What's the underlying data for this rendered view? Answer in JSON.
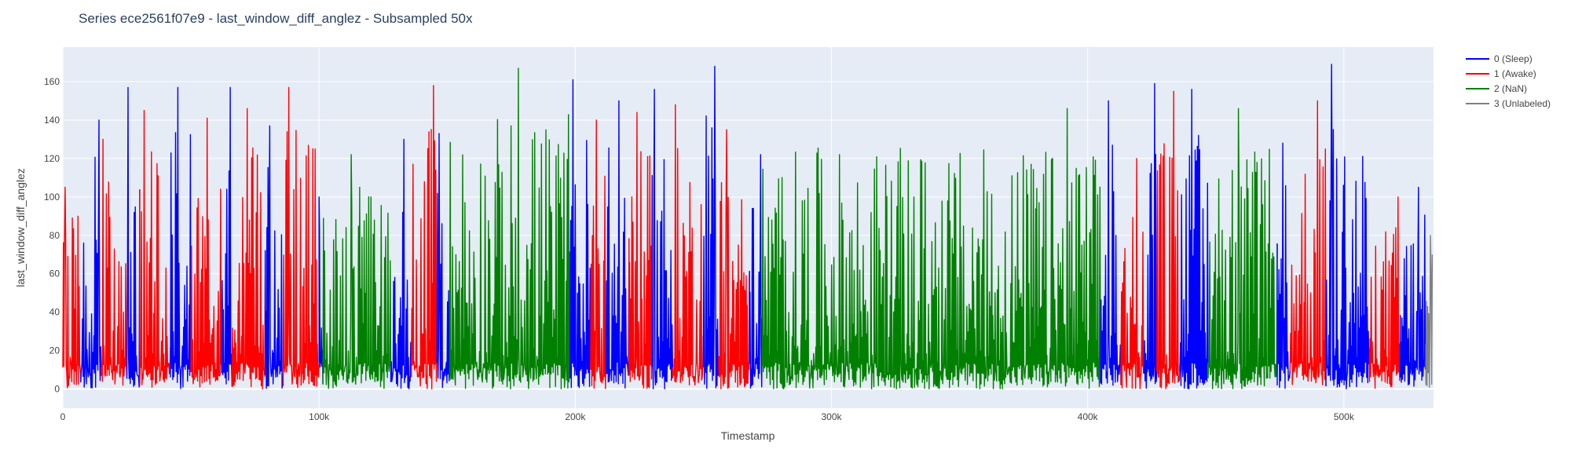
{
  "chart_data": {
    "type": "line",
    "title": "Series ece2561f07e9 - last_window_diff_anglez - Subsampled 50x",
    "xlabel": "Timestamp",
    "ylabel": "last_window_diff_anglez",
    "xlim": [
      0,
      535000
    ],
    "ylim": [
      -10,
      178
    ],
    "x_ticks": [
      0,
      100000,
      200000,
      300000,
      400000,
      500000
    ],
    "x_tick_labels": [
      "0",
      "100k",
      "200k",
      "300k",
      "400k",
      "500k"
    ],
    "y_ticks": [
      0,
      20,
      40,
      60,
      80,
      100,
      120,
      140,
      160
    ],
    "y_tick_labels": [
      "0",
      "20",
      "40",
      "60",
      "80",
      "100",
      "120",
      "140",
      "160"
    ],
    "grid": true,
    "legend_position": "right",
    "series": [
      {
        "name": "0 (Sleep)",
        "color": "#0000ff"
      },
      {
        "name": "1 (Awake)",
        "color": "#ff0000"
      },
      {
        "name": "2 (NaN)",
        "color": "#008000"
      },
      {
        "name": "3 (Unlabeled)",
        "color": "#808080"
      }
    ],
    "segments": [
      {
        "series": 1,
        "x": [
          0,
          7000
        ],
        "peak": 105
      },
      {
        "series": 0,
        "x": [
          7000,
          15000
        ],
        "peak": 140
      },
      {
        "series": 1,
        "x": [
          15000,
          25000
        ],
        "peak": 130
      },
      {
        "series": 0,
        "x": [
          25000,
          30000
        ],
        "peak": 157
      },
      {
        "series": 1,
        "x": [
          30000,
          42000
        ],
        "peak": 145
      },
      {
        "series": 0,
        "x": [
          42000,
          50000
        ],
        "peak": 157
      },
      {
        "series": 1,
        "x": [
          50000,
          62000
        ],
        "peak": 141
      },
      {
        "series": 0,
        "x": [
          62000,
          66000
        ],
        "peak": 157
      },
      {
        "series": 1,
        "x": [
          66000,
          79000
        ],
        "peak": 146
      },
      {
        "series": 0,
        "x": [
          79000,
          86000
        ],
        "peak": 137
      },
      {
        "series": 1,
        "x": [
          86000,
          100000
        ],
        "peak": 157
      },
      {
        "series": 0,
        "x": [
          100000,
          101500
        ],
        "peak": 100
      },
      {
        "series": 2,
        "x": [
          101500,
          128000
        ],
        "peak": 122
      },
      {
        "series": 0,
        "x": [
          128000,
          136000
        ],
        "peak": 130
      },
      {
        "series": 1,
        "x": [
          136000,
          146000
        ],
        "peak": 158
      },
      {
        "series": 0,
        "x": [
          146000,
          151000
        ],
        "peak": 133
      },
      {
        "series": 2,
        "x": [
          151000,
          198000
        ],
        "peak": 167
      },
      {
        "series": 0,
        "x": [
          198000,
          206000
        ],
        "peak": 161
      },
      {
        "series": 1,
        "x": [
          206000,
          212000
        ],
        "peak": 140
      },
      {
        "series": 0,
        "x": [
          212000,
          221000
        ],
        "peak": 150
      },
      {
        "series": 1,
        "x": [
          221000,
          230000
        ],
        "peak": 144
      },
      {
        "series": 0,
        "x": [
          230000,
          238000
        ],
        "peak": 156
      },
      {
        "series": 1,
        "x": [
          238000,
          250000
        ],
        "peak": 148
      },
      {
        "series": 0,
        "x": [
          250000,
          256000
        ],
        "peak": 168
      },
      {
        "series": 1,
        "x": [
          256000,
          268000
        ],
        "peak": 135
      },
      {
        "series": 0,
        "x": [
          268000,
          273000
        ],
        "peak": 122
      },
      {
        "series": 2,
        "x": [
          273000,
          405000
        ],
        "peak": 146
      },
      {
        "series": 0,
        "x": [
          405000,
          413000
        ],
        "peak": 150
      },
      {
        "series": 1,
        "x": [
          413000,
          422000
        ],
        "peak": 120
      },
      {
        "series": 0,
        "x": [
          422000,
          427000
        ],
        "peak": 159
      },
      {
        "series": 1,
        "x": [
          427000,
          436000
        ],
        "peak": 155
      },
      {
        "series": 0,
        "x": [
          436000,
          447000
        ],
        "peak": 156
      },
      {
        "series": 2,
        "x": [
          447000,
          474000
        ],
        "peak": 146
      },
      {
        "series": 0,
        "x": [
          474000,
          479000
        ],
        "peak": 128
      },
      {
        "series": 1,
        "x": [
          479000,
          493000
        ],
        "peak": 150
      },
      {
        "series": 0,
        "x": [
          493000,
          510000
        ],
        "peak": 169
      },
      {
        "series": 1,
        "x": [
          510000,
          522000
        ],
        "peak": 100
      },
      {
        "series": 0,
        "x": [
          522000,
          532000
        ],
        "peak": 105
      },
      {
        "series": 3,
        "x": [
          532000,
          534500
        ],
        "peak": 80
      }
    ]
  }
}
